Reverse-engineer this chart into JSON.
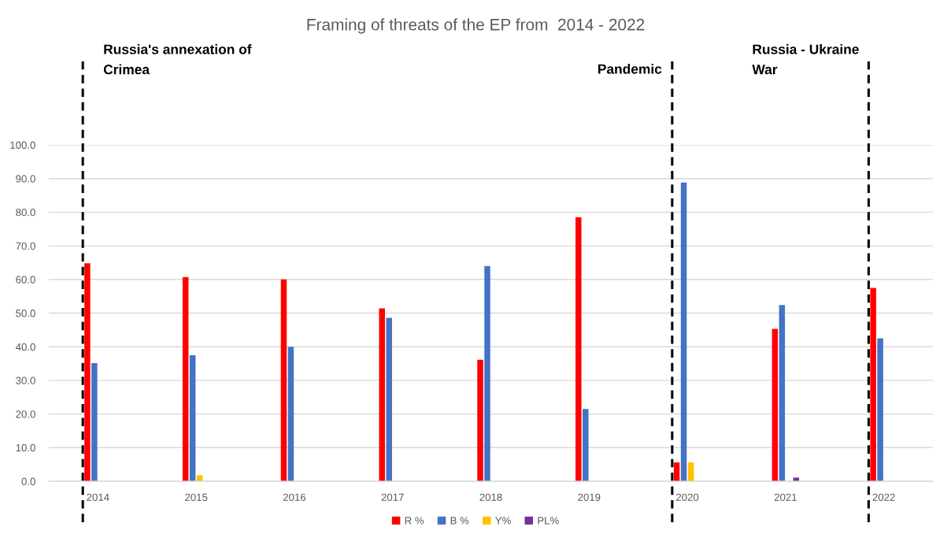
{
  "chart_data": {
    "type": "bar",
    "title": "Framing of threats of the EP from  2014 - 2022",
    "categories": [
      "2014",
      "2015",
      "2016",
      "2017",
      "2018",
      "2019",
      "2020",
      "2021",
      "2022"
    ],
    "series": [
      {
        "name": "R %",
        "color": "#ff0000",
        "values": [
          64.8,
          60.7,
          60.0,
          51.4,
          36.1,
          78.5,
          5.6,
          45.3,
          57.5
        ]
      },
      {
        "name": "B %",
        "color": "#4472c4",
        "values": [
          35.1,
          37.5,
          40.0,
          48.6,
          64.0,
          21.5,
          88.8,
          52.4,
          42.5
        ]
      },
      {
        "name": "Y%",
        "color": "#ffc000",
        "values": [
          null,
          1.8,
          null,
          null,
          null,
          null,
          5.6,
          null,
          null
        ]
      },
      {
        "name": "PL%",
        "color": "#7030a0",
        "values": [
          null,
          null,
          null,
          null,
          null,
          null,
          null,
          1.1,
          null
        ]
      }
    ],
    "ylim": [
      0,
      100
    ],
    "yticks": [
      {
        "value": 0,
        "label": "0.0"
      },
      {
        "value": 10,
        "label": "10.0"
      },
      {
        "value": 20,
        "label": "20.0"
      },
      {
        "value": 30,
        "label": "30.0"
      },
      {
        "value": 40,
        "label": "40.0"
      },
      {
        "value": 50,
        "label": "50.0"
      },
      {
        "value": 60,
        "label": "60.0"
      },
      {
        "value": 70,
        "label": "70.0"
      },
      {
        "value": 80,
        "label": "80.0"
      },
      {
        "value": 90,
        "label": "90.0"
      },
      {
        "value": 100,
        "label": "100.0"
      }
    ],
    "grid": "y",
    "legend": "bottom",
    "ref_lines": [
      {
        "axis": "x",
        "value": "2014",
        "label": "Russia's annexation of\nCrimea",
        "color": "#000000",
        "line_style": "dashed"
      },
      {
        "axis": "x",
        "value": "2020",
        "label": "Pandemic",
        "color": "#000000",
        "line_style": "dashed"
      },
      {
        "axis": "x",
        "value": "2022",
        "label": "Russia - Ukraine\nWar",
        "color": "#000000",
        "line_style": "dashed"
      }
    ]
  }
}
